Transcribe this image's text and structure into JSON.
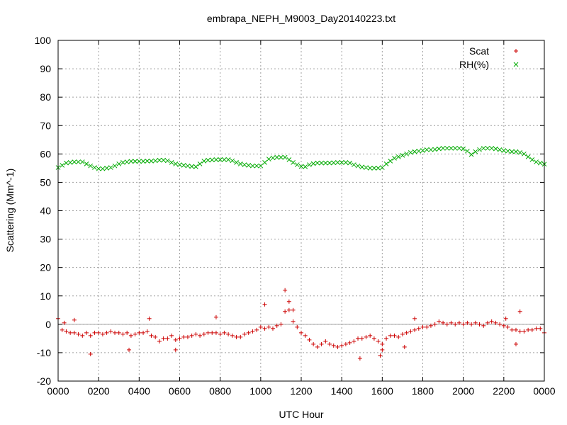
{
  "chart_data": {
    "type": "scatter",
    "title": "embrapa_NEPH_M9003_Day20140223.txt",
    "xlabel": "UTC Hour",
    "ylabel": "Scattering (Mm^-1)",
    "xlim": [
      0,
      24
    ],
    "ylim": [
      -20,
      100
    ],
    "yticks": [
      "-20",
      "-10",
      "0",
      "10",
      "20",
      "30",
      "40",
      "50",
      "60",
      "70",
      "80",
      "90",
      "100"
    ],
    "xticks": [
      "0000",
      "0200",
      "0400",
      "0600",
      "0800",
      "1000",
      "1200",
      "1400",
      "1600",
      "1800",
      "2000",
      "2200",
      "0000"
    ],
    "grid": true,
    "legend_position": "top-right",
    "zero_line": true,
    "series": [
      {
        "name": "Scat",
        "marker": "+",
        "color": "#cc0000",
        "x": [
          0.0,
          0.2,
          0.4,
          0.6,
          0.8,
          1.0,
          1.2,
          1.4,
          1.6,
          1.8,
          2.0,
          2.2,
          2.4,
          2.6,
          2.8,
          3.0,
          3.2,
          3.4,
          3.6,
          3.8,
          4.0,
          4.2,
          4.4,
          4.6,
          4.8,
          5.0,
          5.2,
          5.4,
          5.6,
          5.8,
          6.0,
          6.2,
          6.4,
          6.6,
          6.8,
          7.0,
          7.2,
          7.4,
          7.6,
          7.8,
          8.0,
          8.2,
          8.4,
          8.6,
          8.8,
          9.0,
          9.2,
          9.4,
          9.6,
          9.8,
          10.0,
          10.2,
          10.4,
          10.6,
          10.8,
          11.0,
          11.2,
          11.4,
          11.6,
          11.8,
          12.0,
          12.2,
          12.4,
          12.6,
          12.8,
          13.0,
          13.2,
          13.4,
          13.6,
          13.8,
          14.0,
          14.2,
          14.4,
          14.6,
          14.8,
          15.0,
          15.2,
          15.4,
          15.6,
          15.8,
          16.0,
          16.2,
          16.4,
          16.6,
          16.8,
          17.0,
          17.2,
          17.4,
          17.6,
          17.8,
          18.0,
          18.2,
          18.4,
          18.6,
          18.8,
          19.0,
          19.2,
          19.4,
          19.6,
          19.8,
          20.0,
          20.2,
          20.4,
          20.6,
          20.8,
          21.0,
          21.2,
          21.4,
          21.6,
          21.8,
          22.0,
          22.2,
          22.4,
          22.6,
          22.8,
          23.0,
          23.2,
          23.4,
          23.6,
          23.8,
          24.0,
          1.6,
          3.5,
          4.5,
          5.8,
          7.8,
          10.2,
          11.2,
          11.4,
          11.6,
          14.9,
          15.9,
          16.0,
          17.1,
          17.6,
          22.1,
          22.6,
          22.8,
          0.8,
          0.3
        ],
        "y": [
          2,
          -2,
          -2.5,
          -3,
          -3,
          -3.5,
          -4,
          -3,
          -4,
          -3,
          -3,
          -3.5,
          -3,
          -2.5,
          -3,
          -3,
          -3.5,
          -3,
          -4,
          -3.5,
          -3,
          -3,
          -2.5,
          -4,
          -4.5,
          -6,
          -5,
          -5,
          -4,
          -5.5,
          -5,
          -4.5,
          -4.5,
          -4,
          -3.5,
          -4,
          -3.5,
          -3,
          -3,
          -3,
          -3.5,
          -3,
          -3.5,
          -4,
          -4.5,
          -4.5,
          -3.5,
          -3,
          -2.5,
          -2,
          -1,
          -1.5,
          -1,
          -1.5,
          -0.5,
          0,
          4.5,
          5,
          1,
          -1,
          -3,
          -4,
          -5.5,
          -7,
          -8,
          -7,
          -6,
          -7,
          -7.5,
          -8,
          -7.5,
          -7,
          -6.5,
          -6,
          -5,
          -5,
          -4.5,
          -4,
          -5,
          -6,
          -7,
          -5,
          -4,
          -4,
          -4.5,
          -3.5,
          -3,
          -2.5,
          -2,
          -1.5,
          -1,
          -1,
          -0.5,
          0,
          1,
          0.5,
          0,
          0.5,
          0,
          0.5,
          0,
          0.5,
          0,
          0.5,
          0,
          -0.5,
          0.5,
          1,
          0.5,
          0,
          -0.5,
          -1,
          -2,
          -2,
          -2.5,
          -2.5,
          -2,
          -2,
          -1.5,
          -1.5,
          -3,
          -10.5,
          -9,
          2,
          -9,
          2.5,
          7,
          12,
          8,
          5,
          -12,
          -11,
          -9,
          -8,
          2,
          2,
          -7,
          4.5,
          1.5,
          0.5
        ]
      },
      {
        "name": "RH(%)",
        "marker": "x",
        "color": "#00aa00",
        "x": [
          0.0,
          0.2,
          0.4,
          0.6,
          0.8,
          1.0,
          1.2,
          1.4,
          1.6,
          1.8,
          2.0,
          2.2,
          2.4,
          2.6,
          2.8,
          3.0,
          3.2,
          3.4,
          3.6,
          3.8,
          4.0,
          4.2,
          4.4,
          4.6,
          4.8,
          5.0,
          5.2,
          5.4,
          5.6,
          5.8,
          6.0,
          6.2,
          6.4,
          6.6,
          6.8,
          7.0,
          7.2,
          7.4,
          7.6,
          7.8,
          8.0,
          8.2,
          8.4,
          8.6,
          8.8,
          9.0,
          9.2,
          9.4,
          9.6,
          9.8,
          10.0,
          10.2,
          10.4,
          10.6,
          10.8,
          11.0,
          11.2,
          11.4,
          11.6,
          11.8,
          12.0,
          12.2,
          12.4,
          12.6,
          12.8,
          13.0,
          13.2,
          13.4,
          13.6,
          13.8,
          14.0,
          14.2,
          14.4,
          14.6,
          14.8,
          15.0,
          15.2,
          15.4,
          15.6,
          15.8,
          16.0,
          16.2,
          16.4,
          16.6,
          16.8,
          17.0,
          17.2,
          17.4,
          17.6,
          17.8,
          18.0,
          18.2,
          18.4,
          18.6,
          18.8,
          19.0,
          19.2,
          19.4,
          19.6,
          19.8,
          20.0,
          20.2,
          20.4,
          20.6,
          20.8,
          21.0,
          21.2,
          21.4,
          21.6,
          21.8,
          22.0,
          22.2,
          22.4,
          22.6,
          22.8,
          23.0,
          23.2,
          23.4,
          23.6,
          23.8,
          24.0
        ],
        "y": [
          55.2,
          56.0,
          56.8,
          57.0,
          57.2,
          57.2,
          57.2,
          56.5,
          55.8,
          55.2,
          54.8,
          54.8,
          55.0,
          55.2,
          55.8,
          56.5,
          57.0,
          57.2,
          57.4,
          57.4,
          57.4,
          57.4,
          57.5,
          57.5,
          57.6,
          57.8,
          57.8,
          57.6,
          57.0,
          56.5,
          56.2,
          56.0,
          55.8,
          55.6,
          55.5,
          56.5,
          57.5,
          57.8,
          57.9,
          58.0,
          58.0,
          58.0,
          58.0,
          57.6,
          57.0,
          56.5,
          56.2,
          56.0,
          55.8,
          55.8,
          55.8,
          57.0,
          58.2,
          58.6,
          58.8,
          58.8,
          58.8,
          58.0,
          57.0,
          56.2,
          55.6,
          55.5,
          56.2,
          56.6,
          56.8,
          56.8,
          56.8,
          56.8,
          56.9,
          57.0,
          57.0,
          57.0,
          56.8,
          56.2,
          55.8,
          55.4,
          55.2,
          55.0,
          55.0,
          55.0,
          55.2,
          56.5,
          57.5,
          58.5,
          59.0,
          59.5,
          60.0,
          60.5,
          60.8,
          61.0,
          61.2,
          61.5,
          61.5,
          61.6,
          61.8,
          62.0,
          62.0,
          62.0,
          62.0,
          62.0,
          61.8,
          61.0,
          59.8,
          60.8,
          61.5,
          62.0,
          62.0,
          62.0,
          61.8,
          61.5,
          61.2,
          61.0,
          60.8,
          60.8,
          60.5,
          60.0,
          59.0,
          58.0,
          57.2,
          56.8,
          56.4
        ]
      }
    ]
  }
}
